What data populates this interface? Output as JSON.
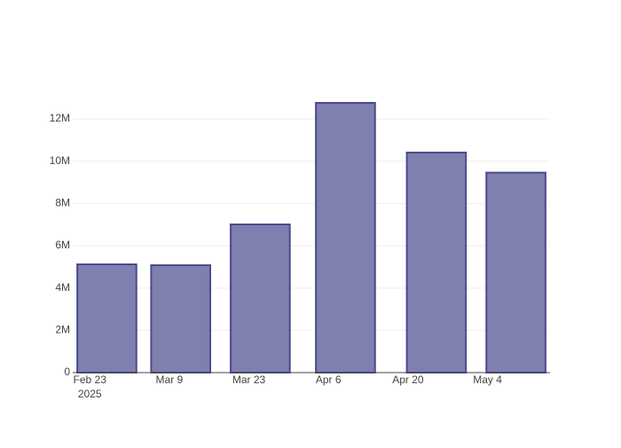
{
  "chart_data": {
    "type": "bar",
    "x": [
      "2025-02-26",
      "2025-03-11",
      "2025-03-25",
      "2025-04-09",
      "2025-04-25",
      "2025-05-09"
    ],
    "values": [
      5120000,
      5080000,
      7010000,
      12760000,
      10410000,
      9460000
    ],
    "color": "#7f7fb0",
    "line_color": "#4b4b8c",
    "xlim": [
      "2025-02-20",
      "2025-05-15"
    ],
    "xticks": [
      {
        "value": "2025-02-23",
        "label": "Feb 23"
      },
      {
        "value": "2025-03-09",
        "label": "Mar 9"
      },
      {
        "value": "2025-03-23",
        "label": "Mar 23"
      },
      {
        "value": "2025-04-06",
        "label": "Apr 6"
      },
      {
        "value": "2025-04-20",
        "label": "Apr 20"
      },
      {
        "value": "2025-05-04",
        "label": "May 4"
      }
    ],
    "x_year": "2025",
    "ylim": [
      0,
      13430000
    ],
    "yticks": [
      0,
      {
        "value": 2000000,
        "label": "2M"
      },
      {
        "value": 4000000,
        "label": "4M"
      },
      {
        "value": 6000000,
        "label": "6M"
      },
      {
        "value": 8000000,
        "label": "8M"
      },
      {
        "value": 10000000,
        "label": "10M"
      },
      {
        "value": 12000000,
        "label": "12M"
      }
    ],
    "grid": true
  }
}
